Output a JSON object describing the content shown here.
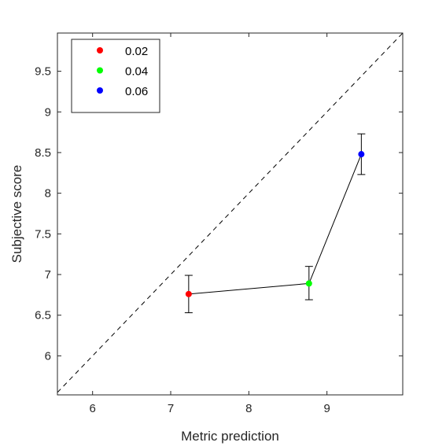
{
  "chart_data": {
    "type": "scatter",
    "title": "",
    "xlabel": "Metric prediction",
    "ylabel": "Subjective score",
    "xlim": [
      5.55,
      9.97
    ],
    "ylim": [
      5.52,
      9.97
    ],
    "xticks": [
      6,
      7,
      8,
      9
    ],
    "yticks": [
      6,
      6.5,
      7,
      7.5,
      8,
      8.5,
      9,
      9.5
    ],
    "xtick_labels": [
      "6",
      "7",
      "8",
      "9"
    ],
    "ytick_labels": [
      "6",
      "6.5",
      "7",
      "7.5",
      "8",
      "8.5",
      "9",
      "9.5"
    ],
    "grid": false,
    "legend_position": "top-left",
    "reference_line": {
      "style": "dashed",
      "color": "#000000",
      "from": [
        5.55,
        5.55
      ],
      "to": [
        9.97,
        9.97
      ]
    },
    "connecting_line": {
      "color": "#000000"
    },
    "series": [
      {
        "name": "0.02",
        "color": "#ff0000",
        "x": 7.23,
        "y": 6.76,
        "err_low": 6.53,
        "err_high": 6.99
      },
      {
        "name": "0.04",
        "color": "#00ff00",
        "x": 8.77,
        "y": 6.89,
        "err_low": 6.69,
        "err_high": 7.1
      },
      {
        "name": "0.06",
        "color": "#0000ff",
        "x": 9.44,
        "y": 8.48,
        "err_low": 8.23,
        "err_high": 8.73
      }
    ]
  }
}
